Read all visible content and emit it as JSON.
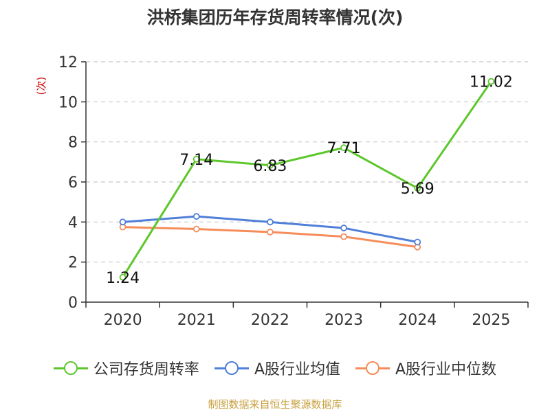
{
  "title": "洪桥集团历年存货周转率情况(次)",
  "source": "制图数据来自恒生聚源数据库",
  "chart_data": {
    "type": "line",
    "title": "洪桥集团历年存货周转率情况(次)",
    "categories": [
      "2020",
      "2021",
      "2022",
      "2023",
      "2024",
      "2025"
    ],
    "ylabel": "(次)",
    "ylim": [
      0,
      12
    ],
    "yticks": [
      0,
      2,
      4,
      6,
      8,
      10,
      12
    ],
    "grid": true,
    "legend_position": "bottom",
    "series": [
      {
        "name": "公司存货周转率",
        "color": "#5cc72a",
        "values": [
          1.24,
          7.14,
          6.83,
          7.71,
          5.69,
          11.02
        ],
        "labels": [
          "1.24",
          "7.14",
          "6.83",
          "7.71",
          "5.69",
          "11.02"
        ]
      },
      {
        "name": "A股行业均值",
        "color": "#4f7fd8",
        "values": [
          4.0,
          4.28,
          4.0,
          3.7,
          3.0,
          null
        ]
      },
      {
        "name": "A股行业中位数",
        "color": "#f58c5a",
        "values": [
          3.75,
          3.65,
          3.5,
          3.27,
          2.75,
          null
        ]
      }
    ]
  }
}
